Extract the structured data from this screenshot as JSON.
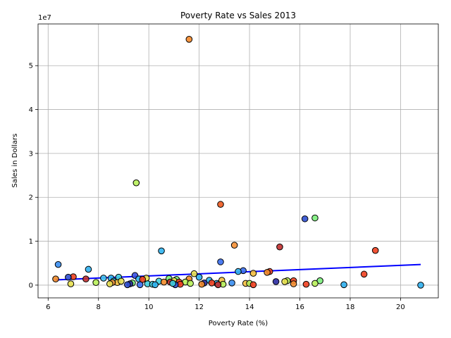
{
  "chart_data": {
    "type": "scatter",
    "title": "Poverty Rate vs Sales 2013",
    "xlabel": "Poverty Rate (%)",
    "ylabel": "Sales in Dollars",
    "y_scale_note": "1e7",
    "xlim": [
      5.6,
      21.5
    ],
    "ylim": [
      -2900000,
      59500000
    ],
    "x_ticks": [
      6,
      8,
      10,
      12,
      14,
      16,
      18,
      20
    ],
    "y_ticks": [
      0,
      10000000,
      20000000,
      30000000,
      40000000,
      50000000
    ],
    "y_tick_labels": [
      "0",
      "1",
      "2",
      "3",
      "4",
      "5"
    ],
    "grid": true,
    "trendline": {
      "color": "#0000ff",
      "x": [
        6.3,
        20.8
      ],
      "y": [
        1200000,
        4700000
      ]
    },
    "points": [
      {
        "x": 11.6,
        "y": 56000000,
        "color": "#f58a2a"
      },
      {
        "x": 9.5,
        "y": 23300000,
        "color": "#b8ef5a"
      },
      {
        "x": 12.85,
        "y": 18400000,
        "color": "#f05a20"
      },
      {
        "x": 16.6,
        "y": 15300000,
        "color": "#7cf07c"
      },
      {
        "x": 16.2,
        "y": 15100000,
        "color": "#2f4fd0"
      },
      {
        "x": 13.4,
        "y": 9100000,
        "color": "#f59035"
      },
      {
        "x": 15.2,
        "y": 8700000,
        "color": "#c23030"
      },
      {
        "x": 19.0,
        "y": 7900000,
        "color": "#f04020"
      },
      {
        "x": 10.5,
        "y": 7800000,
        "color": "#30b4f0"
      },
      {
        "x": 12.85,
        "y": 5300000,
        "color": "#3a6ef0"
      },
      {
        "x": 6.4,
        "y": 4700000,
        "color": "#3a8ef0"
      },
      {
        "x": 7.6,
        "y": 3600000,
        "color": "#30b0f0"
      },
      {
        "x": 13.75,
        "y": 3300000,
        "color": "#3a6ef0"
      },
      {
        "x": 13.55,
        "y": 3100000,
        "color": "#30b0f0"
      },
      {
        "x": 14.8,
        "y": 3100000,
        "color": "#f04020"
      },
      {
        "x": 14.7,
        "y": 2900000,
        "color": "#f08a2a"
      },
      {
        "x": 11.8,
        "y": 2600000,
        "color": "#e8e050"
      },
      {
        "x": 14.15,
        "y": 2700000,
        "color": "#f5c040"
      },
      {
        "x": 18.55,
        "y": 2500000,
        "color": "#f04020"
      },
      {
        "x": 9.45,
        "y": 2200000,
        "color": "#3a50e0"
      },
      {
        "x": 7.0,
        "y": 1900000,
        "color": "#f04020"
      },
      {
        "x": 6.8,
        "y": 1800000,
        "color": "#2f4fd0"
      },
      {
        "x": 8.8,
        "y": 1800000,
        "color": "#40d0e0"
      },
      {
        "x": 12.0,
        "y": 1800000,
        "color": "#30b0f0"
      },
      {
        "x": 9.9,
        "y": 1600000,
        "color": "#e8e050"
      },
      {
        "x": 8.5,
        "y": 1600000,
        "color": "#30b4f0"
      },
      {
        "x": 8.2,
        "y": 1600000,
        "color": "#40c0f0"
      },
      {
        "x": 10.8,
        "y": 1500000,
        "color": "#7cf07c"
      },
      {
        "x": 11.6,
        "y": 1400000,
        "color": "#f08a2a"
      },
      {
        "x": 9.6,
        "y": 1400000,
        "color": "#30b4f0"
      },
      {
        "x": 6.3,
        "y": 1400000,
        "color": "#f08a2a"
      },
      {
        "x": 7.5,
        "y": 1400000,
        "color": "#c23030"
      },
      {
        "x": 11.1,
        "y": 1300000,
        "color": "#7cf07c"
      },
      {
        "x": 9.75,
        "y": 1300000,
        "color": "#f04020"
      },
      {
        "x": 12.4,
        "y": 1100000,
        "color": "#30b4f0"
      },
      {
        "x": 12.9,
        "y": 1100000,
        "color": "#f5c040"
      },
      {
        "x": 15.75,
        "y": 1000000,
        "color": "#f04020"
      },
      {
        "x": 15.5,
        "y": 1000000,
        "color": "#b8ef5a"
      },
      {
        "x": 16.8,
        "y": 1000000,
        "color": "#7cf07c"
      },
      {
        "x": 11.0,
        "y": 1000000,
        "color": "#e8e050"
      },
      {
        "x": 15.05,
        "y": 800000,
        "color": "#2a2aa0"
      },
      {
        "x": 15.4,
        "y": 800000,
        "color": "#e8e050"
      },
      {
        "x": 8.6,
        "y": 900000,
        "color": "#40d0e0"
      },
      {
        "x": 10.4,
        "y": 900000,
        "color": "#40d0e0"
      },
      {
        "x": 10.6,
        "y": 700000,
        "color": "#f08a2a"
      },
      {
        "x": 10.85,
        "y": 700000,
        "color": "#c23030"
      },
      {
        "x": 11.2,
        "y": 700000,
        "color": "#f04020"
      },
      {
        "x": 11.45,
        "y": 700000,
        "color": "#b8ef5a"
      },
      {
        "x": 7.9,
        "y": 600000,
        "color": "#b8ef5a"
      },
      {
        "x": 8.75,
        "y": 600000,
        "color": "#f5c040"
      },
      {
        "x": 8.55,
        "y": 600000,
        "color": "#f59035"
      },
      {
        "x": 9.35,
        "y": 500000,
        "color": "#7cf07c"
      },
      {
        "x": 13.3,
        "y": 500000,
        "color": "#3a8ef0"
      },
      {
        "x": 12.2,
        "y": 500000,
        "color": "#2a2aa0"
      },
      {
        "x": 12.7,
        "y": 400000,
        "color": "#30b0f0"
      },
      {
        "x": 13.85,
        "y": 400000,
        "color": "#f5c040"
      },
      {
        "x": 14.0,
        "y": 400000,
        "color": "#b8ef5a"
      },
      {
        "x": 6.9,
        "y": 300000,
        "color": "#e8e050"
      },
      {
        "x": 8.45,
        "y": 300000,
        "color": "#e8e050"
      },
      {
        "x": 9.25,
        "y": 300000,
        "color": "#2a2aa0"
      },
      {
        "x": 9.95,
        "y": 300000,
        "color": "#40d0e0"
      },
      {
        "x": 10.15,
        "y": 200000,
        "color": "#40d0e0"
      },
      {
        "x": 11.25,
        "y": 200000,
        "color": "#f04020"
      },
      {
        "x": 11.65,
        "y": 400000,
        "color": "#b8ef5a"
      },
      {
        "x": 12.1,
        "y": 200000,
        "color": "#f08a2a"
      },
      {
        "x": 12.5,
        "y": 500000,
        "color": "#f04020"
      },
      {
        "x": 12.95,
        "y": 200000,
        "color": "#b8ef5a"
      },
      {
        "x": 14.15,
        "y": 100000,
        "color": "#f04020"
      },
      {
        "x": 15.75,
        "y": 300000,
        "color": "#f59035"
      },
      {
        "x": 16.25,
        "y": 200000,
        "color": "#f04020"
      },
      {
        "x": 16.6,
        "y": 400000,
        "color": "#b8ef5a"
      },
      {
        "x": 17.75,
        "y": 100000,
        "color": "#30b0f0"
      },
      {
        "x": 20.8,
        "y": 0,
        "color": "#30b0f0"
      },
      {
        "x": 9.65,
        "y": 100000,
        "color": "#3a6ef0"
      },
      {
        "x": 11.05,
        "y": 100000,
        "color": "#2f4fd0"
      },
      {
        "x": 12.75,
        "y": 100000,
        "color": "#c23030"
      },
      {
        "x": 8.9,
        "y": 900000,
        "color": "#e8e050"
      },
      {
        "x": 10.95,
        "y": 400000,
        "color": "#40d0e0"
      },
      {
        "x": 9.15,
        "y": 100000,
        "color": "#2f4fd0"
      },
      {
        "x": 10.25,
        "y": 100000,
        "color": "#30b4f0"
      }
    ]
  }
}
